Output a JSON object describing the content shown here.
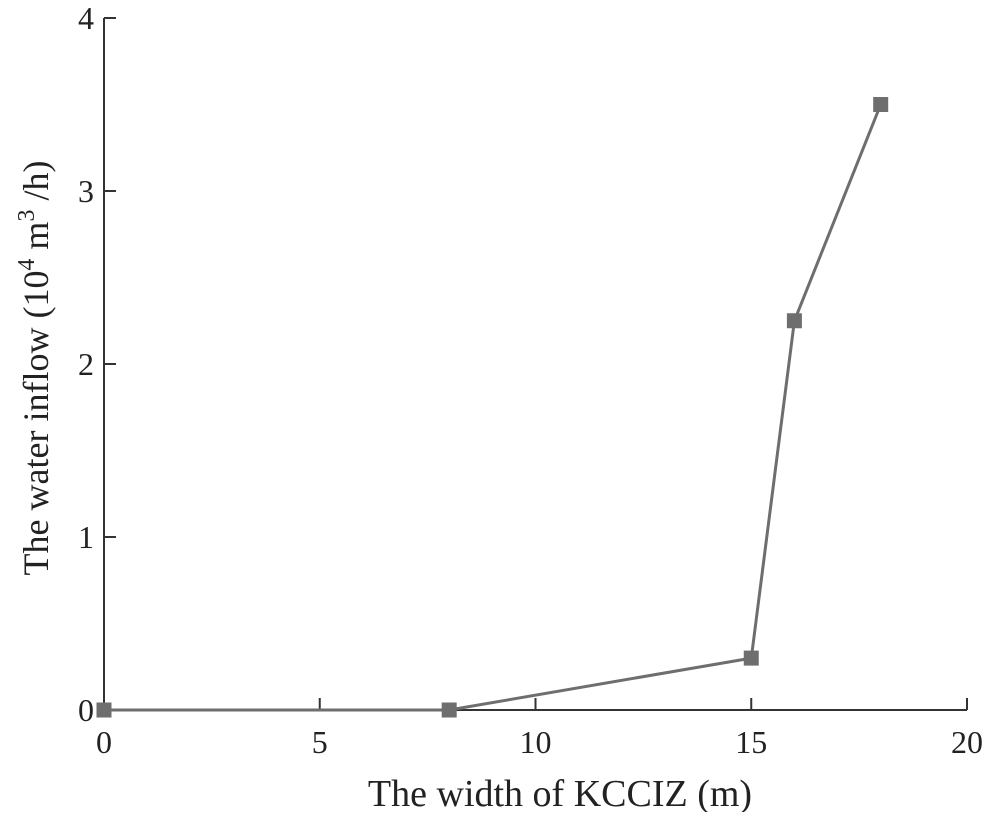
{
  "chart_data": {
    "type": "line",
    "title": "",
    "xlabel": "The width of KCCIZ (m)",
    "ylabel": {
      "prefix": "The water inflow (10",
      "sup1": "4",
      "middle": " m",
      "sup2": "3",
      "suffix": " /h)"
    },
    "xlim": [
      0,
      20
    ],
    "ylim": [
      0,
      4
    ],
    "x_ticks": [
      0,
      5,
      10,
      15,
      20
    ],
    "y_ticks": [
      0,
      1,
      2,
      3,
      4
    ],
    "grid": false,
    "legend": "none",
    "series": [
      {
        "x": [
          0,
          8,
          15,
          16,
          18
        ],
        "y": [
          0,
          0,
          0.3,
          2.25,
          3.5
        ],
        "color": "#6e6e6e",
        "marker": "square"
      }
    ]
  }
}
